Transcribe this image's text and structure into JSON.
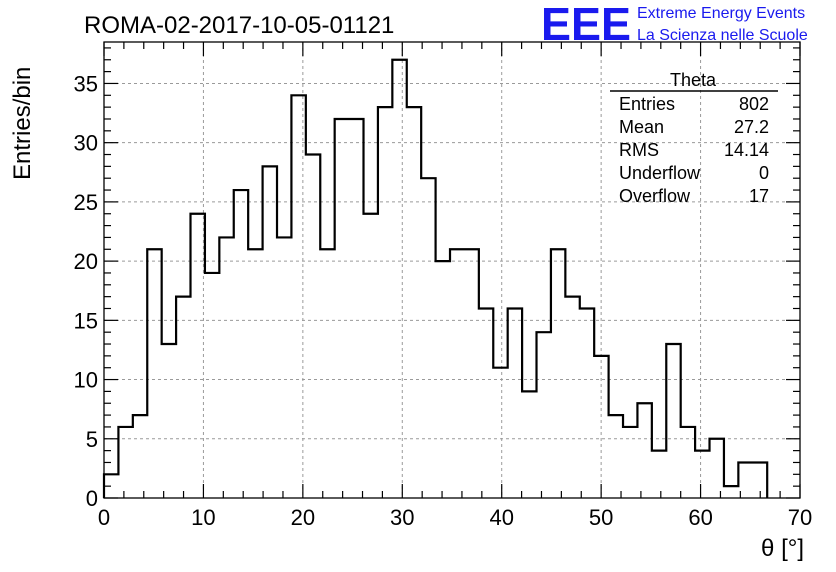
{
  "header": {
    "run_title": "ROMA-02-2017-10-05-01121",
    "logo": "EEE",
    "logo_line1": "Extreme Energy Events",
    "logo_line2": "La Scienza nelle Scuole",
    "logo_color": "#1a1aee"
  },
  "stats": {
    "title": "Theta",
    "rows": [
      {
        "label": "Entries",
        "value": "802"
      },
      {
        "label": "Mean",
        "value": "27.2"
      },
      {
        "label": "RMS",
        "value": "14.14"
      },
      {
        "label": "Underflow",
        "value": "0"
      },
      {
        "label": "Overflow",
        "value": "17"
      }
    ]
  },
  "chart_data": {
    "type": "bar",
    "histogram": "step",
    "bin_width": 1.45,
    "x_start": 0,
    "values": [
      2,
      6,
      7,
      21,
      13,
      17,
      24,
      19,
      22,
      26,
      21,
      28,
      22,
      34,
      29,
      21,
      32,
      32,
      24,
      33,
      37,
      33,
      27,
      20,
      21,
      21,
      16,
      11,
      16,
      9,
      14,
      21,
      17,
      16,
      12,
      7,
      6,
      8,
      4,
      13,
      6,
      4,
      5,
      1,
      3,
      3
    ],
    "xlabel": "θ [°]",
    "ylabel": "Entries/bin",
    "xlim": [
      0,
      70
    ],
    "ylim": [
      0,
      38.5
    ],
    "x_ticks": [
      0,
      10,
      20,
      30,
      40,
      50,
      60,
      70
    ],
    "y_ticks": [
      0,
      5,
      10,
      15,
      20,
      25,
      30,
      35
    ],
    "grid": true,
    "line_color": "#000000"
  }
}
